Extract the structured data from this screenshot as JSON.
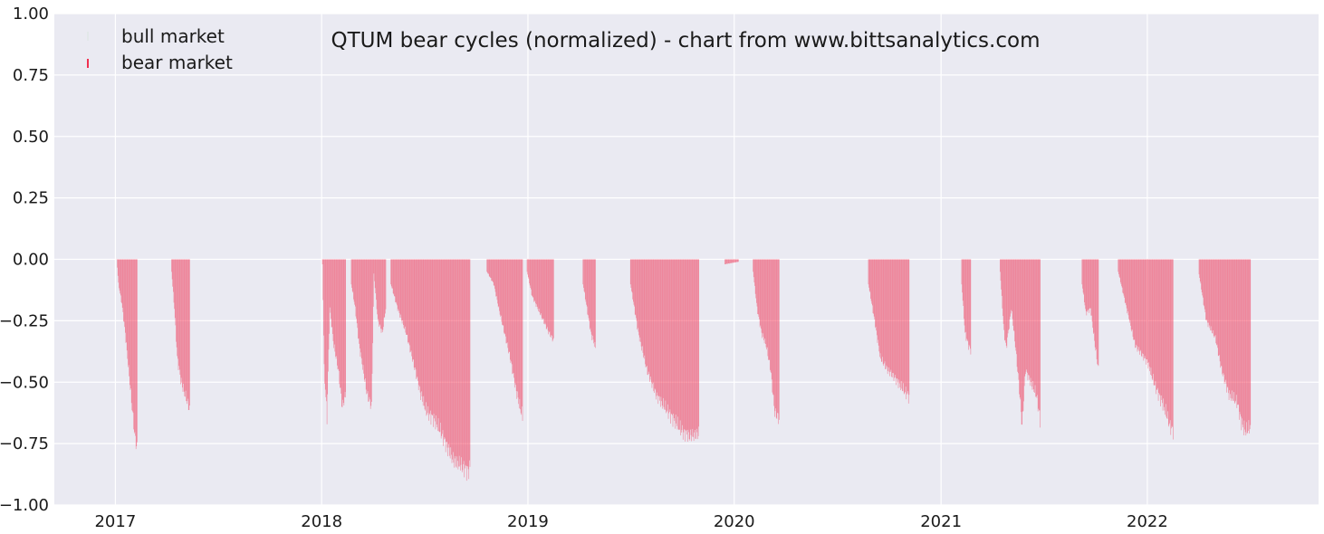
{
  "chart_data": {
    "type": "bar",
    "title": "QTUM bear cycles (normalized)  - chart from www.bittsanalytics.com",
    "xlabel": "",
    "ylabel": "",
    "ylim": [
      -1.0,
      1.0
    ],
    "xlim": [
      "2016-09-15",
      "2022-10-31"
    ],
    "grid": true,
    "legend_placement": "top-left",
    "y_ticks": [
      "−1.00",
      "−0.75",
      "−0.50",
      "−0.25",
      "0.00",
      "0.25",
      "0.50",
      "0.75",
      "1.00"
    ],
    "y_tick_values": [
      -1.0,
      -0.75,
      -0.5,
      -0.25,
      0.0,
      0.25,
      0.5,
      0.75,
      1.0
    ],
    "x_ticks": [
      "2017",
      "2018",
      "2019",
      "2020",
      "2021",
      "2022"
    ],
    "x_tick_dates": [
      "2017-01-01",
      "2018-01-01",
      "2019-01-01",
      "2020-01-01",
      "2021-01-01",
      "2022-01-01"
    ],
    "colors": {
      "bear": "#f03050",
      "bull": "#b4dcb4",
      "plot_background": "#eaeaf2",
      "grid": "#ffffff"
    },
    "series": [
      {
        "name": "bull market",
        "role": "bull",
        "points": []
      },
      {
        "name": "bear market",
        "role": "bear",
        "segments": [
          {
            "points": [
              [
                "2017-01-03",
                0.0
              ],
              [
                "2017-01-06",
                -0.1
              ],
              [
                "2017-01-12",
                -0.18
              ],
              [
                "2017-01-18",
                -0.3
              ],
              [
                "2017-01-24",
                -0.45
              ],
              [
                "2017-01-30",
                -0.6
              ],
              [
                "2017-02-04",
                -0.72
              ],
              [
                "2017-02-08",
                -0.77
              ]
            ]
          },
          {
            "points": [
              [
                "2017-04-10",
                -0.05
              ],
              [
                "2017-04-15",
                -0.2
              ],
              [
                "2017-04-20",
                -0.4
              ],
              [
                "2017-04-27",
                -0.5
              ],
              [
                "2017-05-05",
                -0.56
              ],
              [
                "2017-05-12",
                -0.61
              ]
            ]
          },
          {
            "points": [
              [
                "2018-01-02",
                -0.02
              ],
              [
                "2018-01-05",
                -0.45
              ],
              [
                "2018-01-10",
                -0.64
              ],
              [
                "2018-01-15",
                -0.2
              ],
              [
                "2018-01-22",
                -0.35
              ],
              [
                "2018-01-30",
                -0.45
              ],
              [
                "2018-02-06",
                -0.6
              ],
              [
                "2018-02-12",
                -0.55
              ]
            ]
          },
          {
            "points": [
              [
                "2018-02-22",
                -0.1
              ],
              [
                "2018-03-01",
                -0.2
              ],
              [
                "2018-03-08",
                -0.35
              ],
              [
                "2018-03-15",
                -0.45
              ],
              [
                "2018-03-22",
                -0.55
              ],
              [
                "2018-03-30",
                -0.6
              ],
              [
                "2018-04-03",
                -0.06
              ],
              [
                "2018-04-10",
                -0.25
              ],
              [
                "2018-04-18",
                -0.3
              ],
              [
                "2018-04-24",
                -0.2
              ]
            ]
          },
          {
            "points": [
              [
                "2018-05-03",
                -0.1
              ],
              [
                "2018-05-15",
                -0.2
              ],
              [
                "2018-05-30",
                -0.3
              ],
              [
                "2018-06-15",
                -0.45
              ],
              [
                "2018-06-25",
                -0.55
              ],
              [
                "2018-07-05",
                -0.62
              ],
              [
                "2018-07-18",
                -0.65
              ],
              [
                "2018-07-30",
                -0.7
              ],
              [
                "2018-08-10",
                -0.76
              ],
              [
                "2018-08-22",
                -0.82
              ],
              [
                "2018-09-05",
                -0.84
              ],
              [
                "2018-09-15",
                -0.86
              ],
              [
                "2018-09-20",
                -0.85
              ]
            ]
          },
          {
            "points": [
              [
                "2018-10-20",
                -0.05
              ],
              [
                "2018-11-01",
                -0.1
              ],
              [
                "2018-11-10",
                -0.2
              ],
              [
                "2018-11-20",
                -0.3
              ],
              [
                "2018-11-30",
                -0.4
              ],
              [
                "2018-12-08",
                -0.5
              ],
              [
                "2018-12-15",
                -0.58
              ],
              [
                "2018-12-22",
                -0.64
              ]
            ]
          },
          {
            "points": [
              [
                "2018-12-30",
                -0.05
              ],
              [
                "2019-01-08",
                -0.15
              ],
              [
                "2019-01-18",
                -0.2
              ],
              [
                "2019-01-28",
                -0.25
              ],
              [
                "2019-02-07",
                -0.3
              ],
              [
                "2019-02-15",
                -0.33
              ]
            ]
          },
          {
            "points": [
              [
                "2019-04-08",
                -0.1
              ],
              [
                "2019-04-15",
                -0.2
              ],
              [
                "2019-04-22",
                -0.3
              ],
              [
                "2019-04-30",
                -0.36
              ]
            ]
          },
          {
            "points": [
              [
                "2019-07-01",
                -0.1
              ],
              [
                "2019-07-15",
                -0.3
              ],
              [
                "2019-07-30",
                -0.45
              ],
              [
                "2019-08-15",
                -0.55
              ],
              [
                "2019-08-30",
                -0.6
              ],
              [
                "2019-09-15",
                -0.65
              ],
              [
                "2019-09-30",
                -0.7
              ],
              [
                "2019-10-15",
                -0.72
              ],
              [
                "2019-10-30",
                -0.71
              ]
            ]
          },
          {
            "points": [
              [
                "2019-12-15",
                -0.02
              ],
              [
                "2020-01-08",
                -0.01
              ]
            ]
          },
          {
            "points": [
              [
                "2020-02-03",
                -0.05
              ],
              [
                "2020-02-10",
                -0.2
              ],
              [
                "2020-02-18",
                -0.3
              ],
              [
                "2020-02-26",
                -0.35
              ],
              [
                "2020-03-05",
                -0.45
              ],
              [
                "2020-03-12",
                -0.62
              ],
              [
                "2020-03-20",
                -0.65
              ]
            ]
          },
          {
            "points": [
              [
                "2020-08-25",
                -0.1
              ],
              [
                "2020-09-05",
                -0.25
              ],
              [
                "2020-09-15",
                -0.4
              ],
              [
                "2020-09-28",
                -0.45
              ],
              [
                "2020-10-10",
                -0.48
              ],
              [
                "2020-10-22",
                -0.52
              ],
              [
                "2020-11-05",
                -0.56
              ]
            ]
          },
          {
            "points": [
              [
                "2021-02-06",
                -0.1
              ],
              [
                "2021-02-12",
                -0.3
              ],
              [
                "2021-02-18",
                -0.35
              ],
              [
                "2021-02-22",
                -0.37
              ]
            ]
          },
          {
            "points": [
              [
                "2021-04-15",
                -0.05
              ],
              [
                "2021-04-22",
                -0.3
              ],
              [
                "2021-04-26",
                -0.36
              ],
              [
                "2021-05-05",
                -0.2
              ],
              [
                "2021-05-12",
                -0.35
              ],
              [
                "2021-05-18",
                -0.5
              ],
              [
                "2021-05-24",
                -0.68
              ],
              [
                "2021-05-30",
                -0.45
              ],
              [
                "2021-06-08",
                -0.5
              ],
              [
                "2021-06-18",
                -0.55
              ],
              [
                "2021-06-25",
                -0.65
              ]
            ]
          },
          {
            "points": [
              [
                "2021-09-07",
                -0.1
              ],
              [
                "2021-09-14",
                -0.22
              ],
              [
                "2021-09-22",
                -0.2
              ],
              [
                "2021-09-30",
                -0.35
              ],
              [
                "2021-10-06",
                -0.45
              ]
            ]
          },
          {
            "points": [
              [
                "2021-11-10",
                -0.05
              ],
              [
                "2021-11-25",
                -0.2
              ],
              [
                "2021-12-10",
                -0.35
              ],
              [
                "2022-01-01",
                -0.42
              ],
              [
                "2022-01-15",
                -0.52
              ],
              [
                "2022-01-30",
                -0.6
              ],
              [
                "2022-02-10",
                -0.68
              ],
              [
                "2022-02-15",
                -0.7
              ]
            ]
          },
          {
            "points": [
              [
                "2022-04-02",
                -0.06
              ],
              [
                "2022-04-15",
                -0.25
              ],
              [
                "2022-05-01",
                -0.32
              ],
              [
                "2022-05-12",
                -0.45
              ],
              [
                "2022-05-25",
                -0.55
              ],
              [
                "2022-06-08",
                -0.58
              ],
              [
                "2022-06-18",
                -0.68
              ],
              [
                "2022-06-25",
                -0.7
              ],
              [
                "2022-07-02",
                -0.68
              ]
            ]
          }
        ]
      }
    ]
  }
}
